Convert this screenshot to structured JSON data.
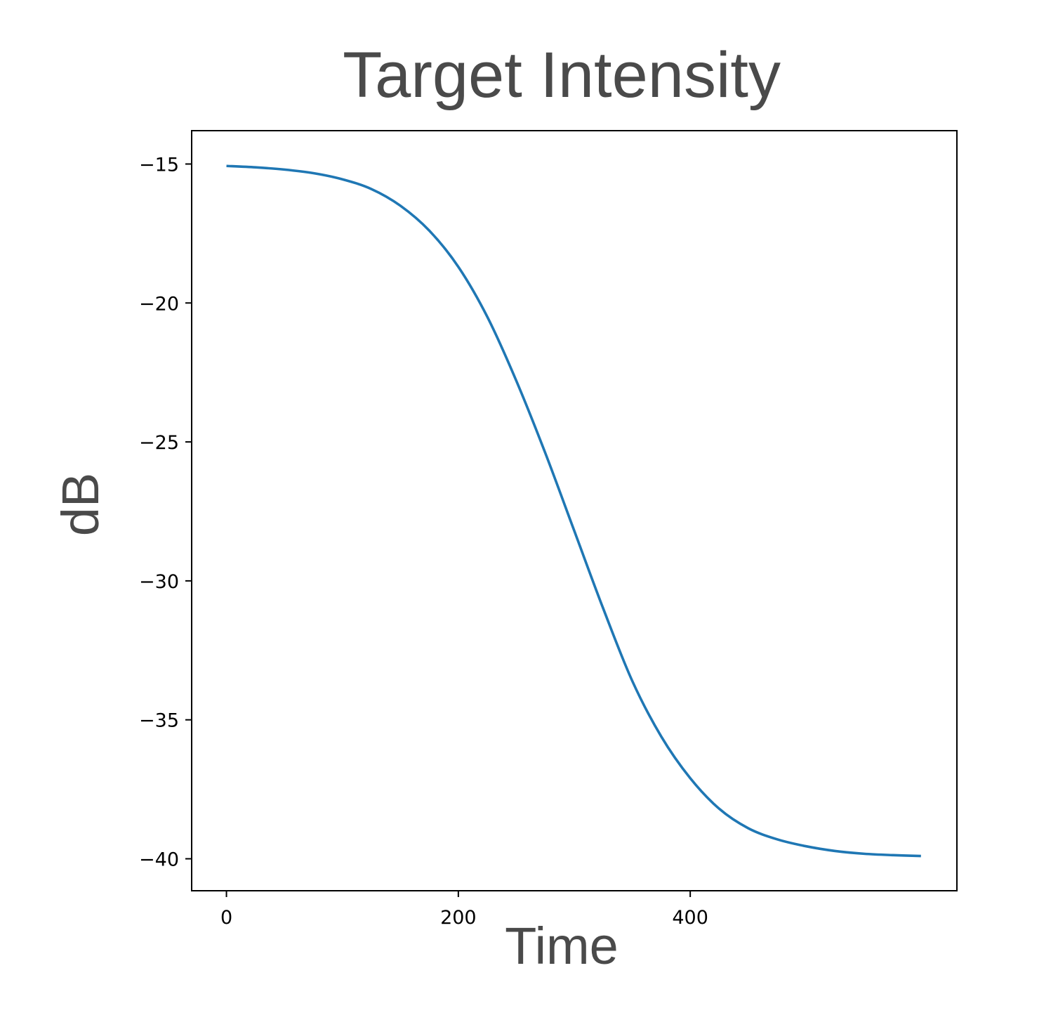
{
  "chart_data": {
    "type": "line",
    "title": "Target Intensity",
    "xlabel": "Time",
    "ylabel": "dB",
    "xlim": [
      -30,
      630
    ],
    "ylim": [
      -41.15,
      -13.8
    ],
    "xticks": [
      0,
      200,
      400
    ],
    "xtick_labels": [
      "0",
      "200",
      "400"
    ],
    "yticks": [
      -15,
      -20,
      -25,
      -30,
      -35,
      -40
    ],
    "ytick_labels": [
      "−15",
      "−20",
      "−25",
      "−30",
      "−35",
      "−40"
    ],
    "grid": false,
    "series": [
      {
        "color": "#1f77b4",
        "x": [
          0,
          25,
          50,
          75,
          100,
          125,
          150,
          175,
          200,
          225,
          250,
          275,
          300,
          325,
          350,
          375,
          400,
          425,
          450,
          475,
          500,
          525,
          550,
          575,
          599
        ],
        "y": [
          -15.07,
          -15.12,
          -15.2,
          -15.33,
          -15.55,
          -15.9,
          -16.5,
          -17.4,
          -18.7,
          -20.5,
          -22.8,
          -25.4,
          -28.2,
          -31.0,
          -33.6,
          -35.6,
          -37.1,
          -38.2,
          -38.9,
          -39.3,
          -39.55,
          -39.72,
          -39.82,
          -39.87,
          -39.9
        ]
      }
    ]
  }
}
